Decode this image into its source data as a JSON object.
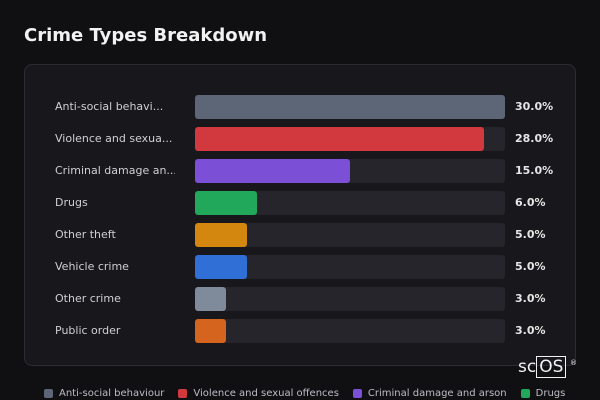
{
  "title": "Crime Types Breakdown",
  "logo": {
    "text_prefix": "sc",
    "text_boxed": "OS",
    "mark": "®"
  },
  "chart_data": {
    "type": "bar",
    "orientation": "horizontal",
    "categories": [
      "Anti-social behavi...",
      "Violence and sexua...",
      "Criminal damage an...",
      "Drugs",
      "Other theft",
      "Vehicle crime",
      "Other crime",
      "Public order"
    ],
    "values": [
      30.0,
      28.0,
      15.0,
      6.0,
      5.0,
      5.0,
      3.0,
      3.0
    ],
    "value_labels": [
      "30.0%",
      "28.0%",
      "15.0%",
      "6.0%",
      "5.0%",
      "5.0%",
      "3.0%",
      "3.0%"
    ],
    "xlim": [
      0,
      30
    ],
    "colors": [
      "#5c6677",
      "#d1393e",
      "#7b4fd6",
      "#22a85a",
      "#d4870f",
      "#2f6fd6",
      "#7f8a9b",
      "#d4641e"
    ],
    "legend_position": "bottom",
    "legend": [
      {
        "name": "Anti-social behaviour",
        "color": "#5c6677"
      },
      {
        "name": "Violence and sexual offences",
        "color": "#d1393e"
      },
      {
        "name": "Criminal damage and arson",
        "color": "#7b4fd6"
      },
      {
        "name": "Drugs",
        "color": "#22a85a"
      }
    ]
  }
}
